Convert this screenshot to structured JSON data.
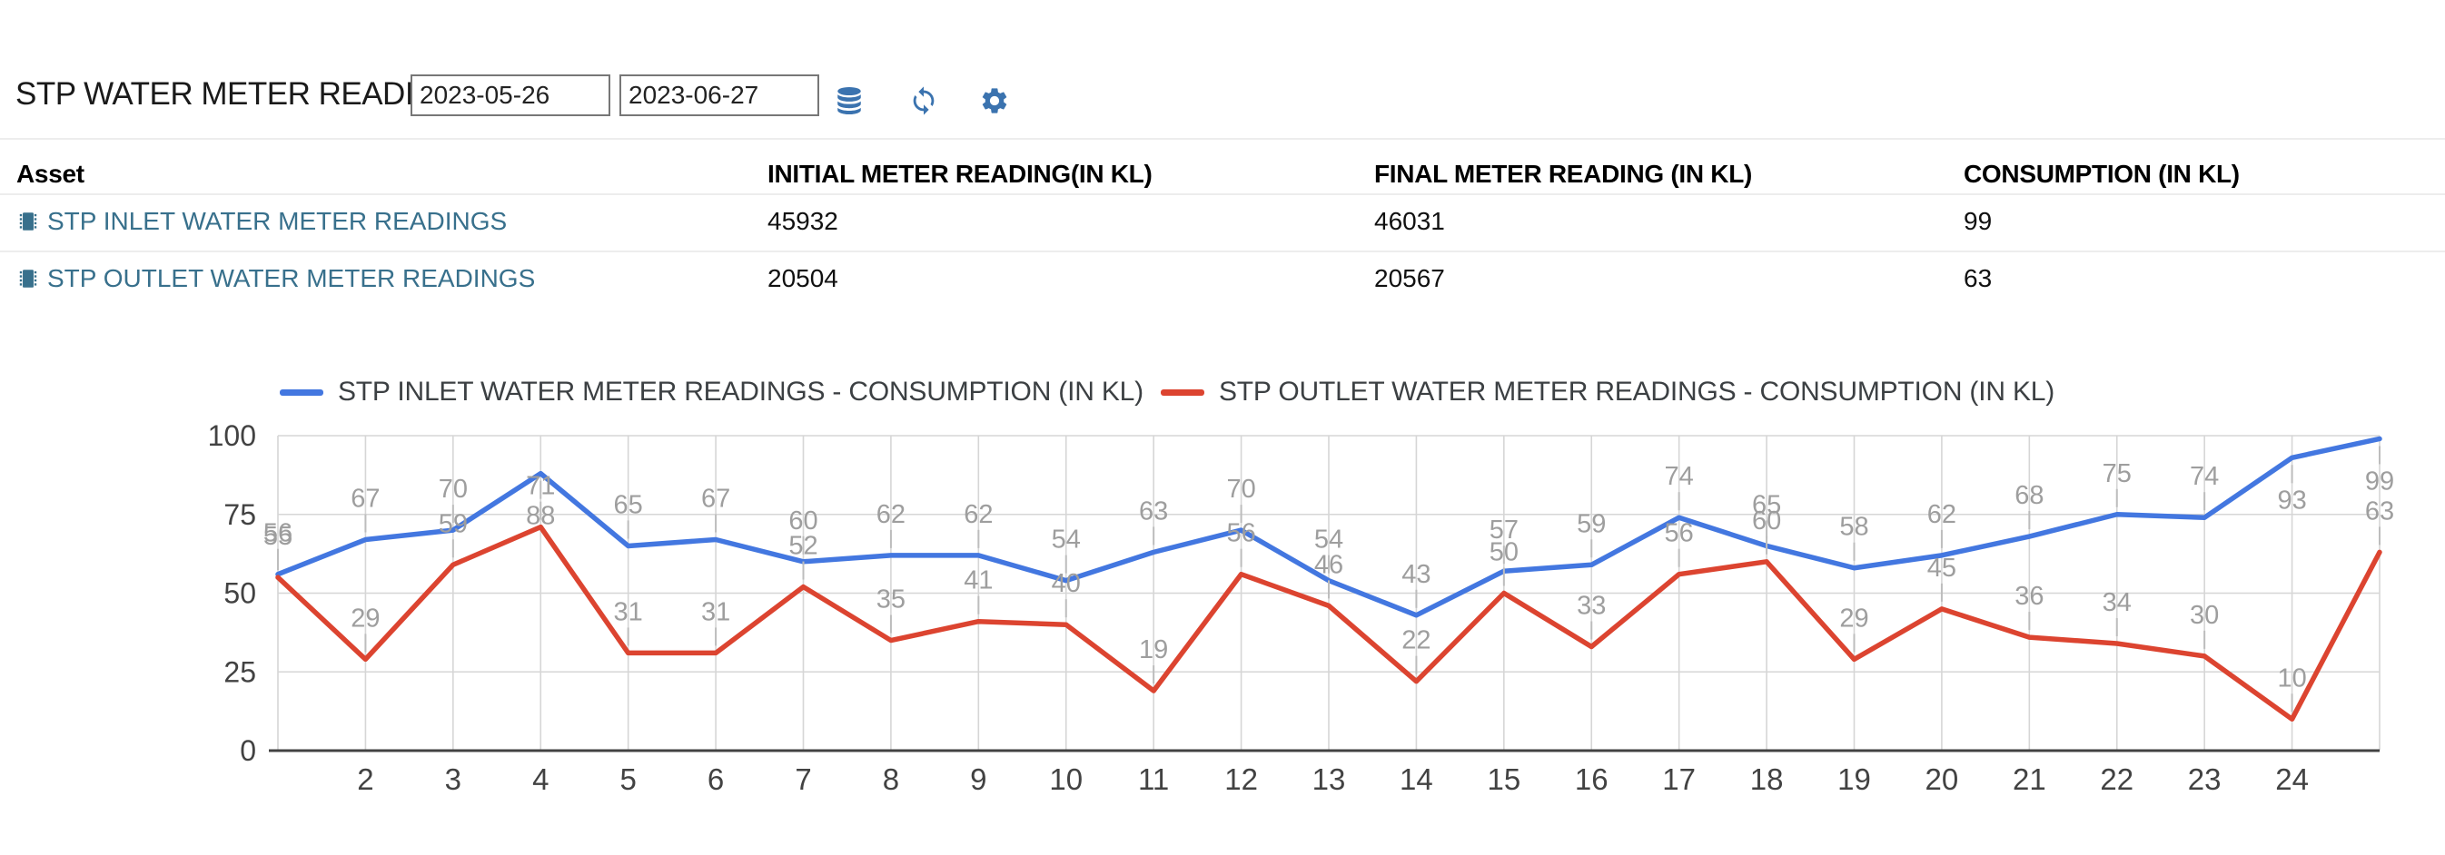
{
  "header": {
    "title": "STP WATER METER READINGS",
    "date_from": "2023-05-26",
    "date_to": "2023-06-27",
    "icon_color": "#3b73af",
    "icons": [
      "database-icon",
      "refresh-icon",
      "gear-icon"
    ]
  },
  "table": {
    "columns": [
      "Asset",
      "INITIAL METER READING(IN KL)",
      "FINAL METER READING (IN KL)",
      "CONSUMPTION (IN KL)"
    ],
    "link_color": "#38708c",
    "rows": [
      {
        "asset": "STP INLET WATER METER READINGS",
        "initial": "45932",
        "final": "46031",
        "consumption": "99"
      },
      {
        "asset": "STP OUTLET WATER METER READINGS",
        "initial": "20504",
        "final": "20567",
        "consumption": "63"
      }
    ]
  },
  "chart_data": {
    "type": "line",
    "title": "",
    "xlabel": "",
    "ylabel": "",
    "x": [
      1,
      2,
      3,
      4,
      5,
      6,
      7,
      8,
      9,
      10,
      11,
      12,
      13,
      14,
      15,
      16,
      17,
      18,
      19,
      20,
      21,
      22,
      23,
      24,
      25
    ],
    "xticks": [
      2,
      3,
      4,
      5,
      6,
      7,
      8,
      9,
      10,
      11,
      12,
      13,
      14,
      15,
      16,
      17,
      18,
      19,
      20,
      21,
      22,
      23,
      24
    ],
    "yticks": [
      0,
      25,
      50,
      75,
      100
    ],
    "ylim": [
      0,
      100
    ],
    "grid": true,
    "legend_position": "top",
    "point_labels": true,
    "annotation_color": "#9e9e9e",
    "gridline_color": "#d6d6d6",
    "baseline_color": "#424242",
    "axis_label_color": "#424242",
    "series": [
      {
        "name": "STP INLET WATER METER READINGS - CONSUMPTION (IN KL)",
        "color": "#4377e0",
        "values": [
          56,
          67,
          70,
          88,
          65,
          67,
          60,
          62,
          62,
          54,
          63,
          70,
          54,
          43,
          57,
          59,
          74,
          65,
          58,
          62,
          68,
          75,
          74,
          93,
          99
        ]
      },
      {
        "name": "STP OUTLET WATER METER READINGS - CONSUMPTION (IN KL)",
        "color": "#dc4430",
        "values": [
          55,
          29,
          59,
          71,
          31,
          31,
          52,
          35,
          41,
          40,
          19,
          56,
          46,
          22,
          50,
          33,
          56,
          60,
          29,
          45,
          36,
          34,
          30,
          10,
          63
        ]
      }
    ]
  }
}
